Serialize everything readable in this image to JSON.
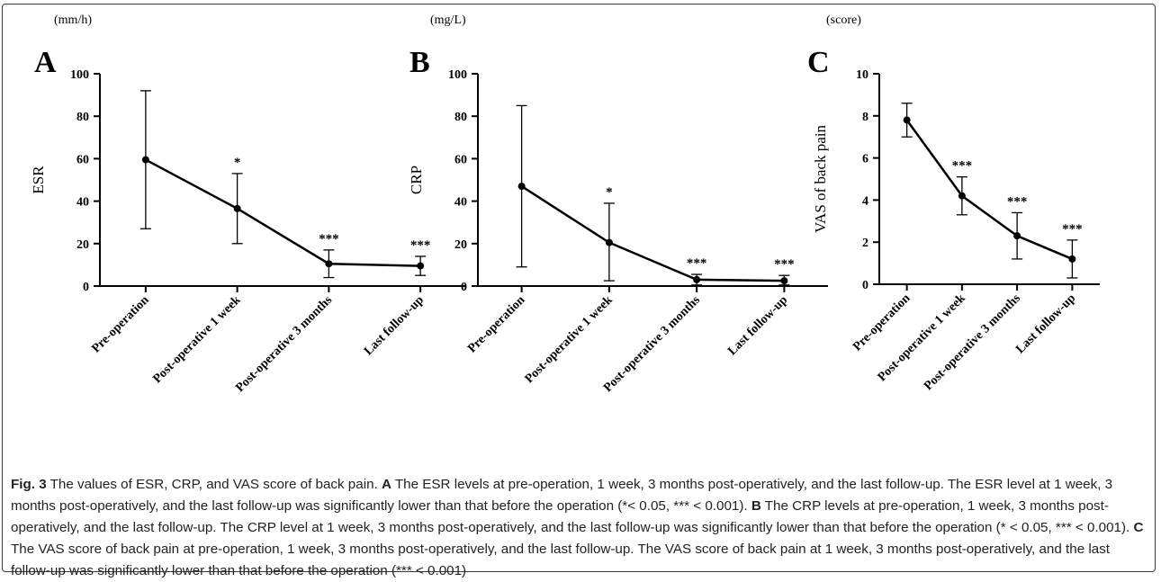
{
  "chart_data": [
    {
      "type": "line",
      "panel": "A",
      "unit": "(mm/h)",
      "ylabel": "ESR",
      "ylim": [
        0,
        100
      ],
      "yticks": [
        "0",
        "20",
        "40",
        "60",
        "80",
        "100"
      ],
      "categories": [
        "Pre-operation",
        "Post-operative 1 week",
        "Post-operative 3 months",
        "Last follow-up"
      ],
      "values": [
        59.5,
        36.5,
        10.5,
        9.5
      ],
      "error_low": [
        27,
        20,
        4,
        5
      ],
      "error_high": [
        92,
        53,
        17,
        14
      ],
      "significance": [
        "",
        "*",
        "***",
        "***"
      ]
    },
    {
      "type": "line",
      "panel": "B",
      "unit": "(mg/L)",
      "ylabel": "CRP",
      "ylim": [
        0,
        100
      ],
      "yticks": [
        "0",
        "20",
        "40",
        "60",
        "80",
        "100"
      ],
      "categories": [
        "Pre-operation",
        "Post-operative 1 week",
        "Post-operative 3 months",
        "Last follow-up"
      ],
      "values": [
        47,
        20.5,
        3,
        2.5
      ],
      "error_low": [
        9,
        2.5,
        0.5,
        0.5
      ],
      "error_high": [
        85,
        39,
        5.5,
        5
      ],
      "significance": [
        "",
        "*",
        "***",
        "***"
      ]
    },
    {
      "type": "line",
      "panel": "C",
      "unit": "(score)",
      "ylabel": "VAS of back pain",
      "ylim": [
        0,
        10
      ],
      "yticks": [
        "0",
        "2",
        "4",
        "6",
        "8",
        "10"
      ],
      "categories": [
        "Pre-operation",
        "Post-operative 1 week",
        "Post-operative 3 months",
        "Last follow-up"
      ],
      "values": [
        7.8,
        4.2,
        2.3,
        1.2
      ],
      "error_low": [
        7.0,
        3.3,
        1.2,
        0.3
      ],
      "error_high": [
        8.6,
        5.1,
        3.4,
        2.1
      ],
      "significance": [
        "",
        "***",
        "***",
        "***"
      ]
    }
  ],
  "caption": {
    "fig_label": "Fig. 3",
    "lead": " The values of ESR, CRP, and VAS score of back pain. ",
    "a_label": "A",
    "a_text": " The ESR levels at pre-operation, 1 week, 3 months post-operatively, and the last follow-up. The ESR level at 1 week, 3 months post-operatively, and the last follow-up was significantly lower than that before the operation (*< 0.05, *** < 0.001). ",
    "b_label": "B",
    "b_text": " The CRP levels at pre-operation, 1 week, 3 months post-operatively, and the last follow-up. The CRP level at 1 week, 3 months post-operatively, and the last follow-up was significantly lower than that before the operation (* < 0.05, *** < 0.001). ",
    "c_label": "C",
    "c_text": " The VAS score of back pain at pre-operation, 1 week, 3 months post-operatively, and the last follow-up. The VAS score of back pain at 1 week, 3 months post-operatively, and the last follow-up was significantly lower than that before the operation (*** < 0.001)"
  }
}
